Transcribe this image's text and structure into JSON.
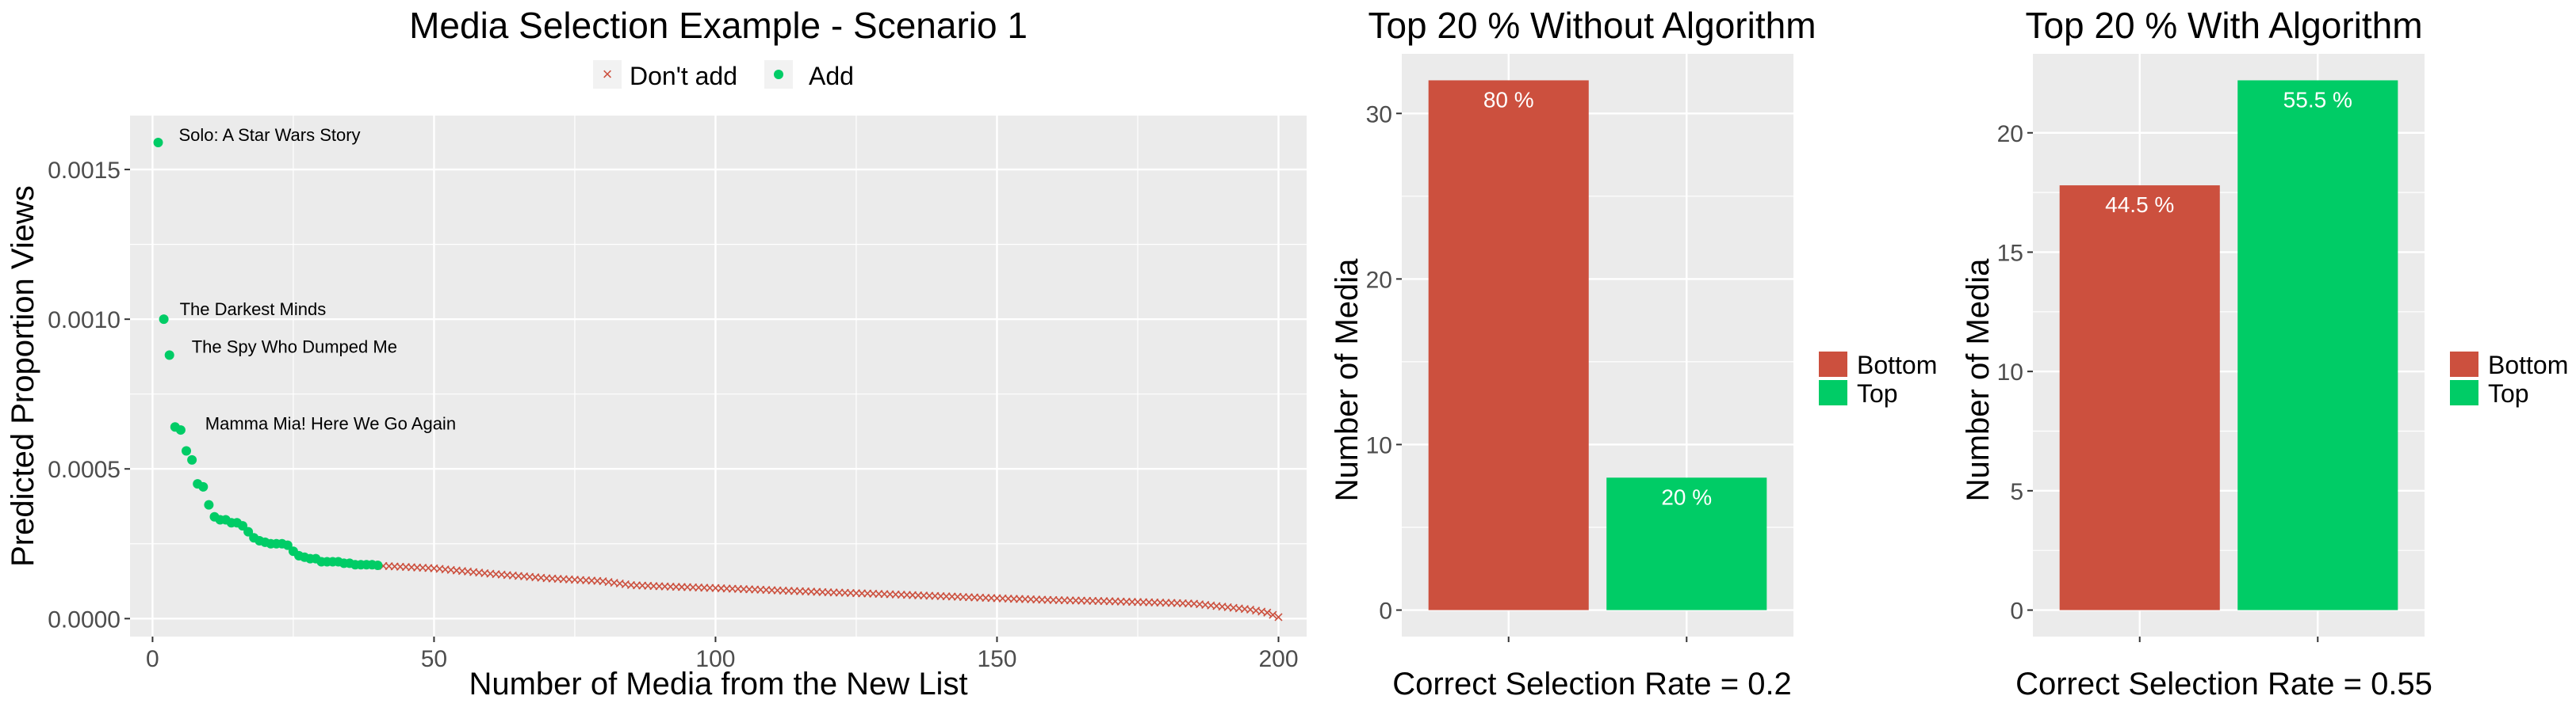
{
  "colors": {
    "dont_add": "#CC503E",
    "add": "#00CC66",
    "bottom": "#CC503E",
    "top": "#00CC66",
    "panel_bg": "#EBEBEB",
    "grid": "#FFFFFF",
    "axis_text": "#4D4D4D"
  },
  "chart_data": [
    {
      "type": "scatter",
      "title": "Media Selection Example - Scenario 1",
      "xlabel": "Number of Media from the New List",
      "ylabel": "Predicted Proportion Views",
      "xlim": [
        -4,
        205
      ],
      "ylim": [
        -6e-05,
        0.00168
      ],
      "x_ticks": [
        0,
        50,
        100,
        150,
        200
      ],
      "x_tick_labels": [
        "0",
        "50",
        "100",
        "150",
        "200"
      ],
      "y_ticks": [
        0,
        0.0005,
        0.001,
        0.0015
      ],
      "y_tick_labels": [
        "0.0000",
        "0.0005",
        "0.0010",
        "0.0015"
      ],
      "grid": true,
      "legend": {
        "position": "top",
        "entries": [
          "Don't add",
          "Add"
        ],
        "markers": [
          "cross",
          "dot"
        ]
      },
      "series": [
        {
          "name": "Add",
          "marker": "dot",
          "x": [
            1,
            2,
            3,
            4,
            5,
            6,
            7,
            8,
            9,
            10,
            11,
            12,
            13,
            14,
            15,
            16,
            17,
            18,
            19,
            20,
            21,
            22,
            23,
            24,
            25,
            26,
            27,
            28,
            29,
            30,
            31,
            32,
            33,
            34,
            35,
            36,
            37,
            38,
            39,
            40
          ],
          "y": [
            0.00159,
            0.001,
            0.00088,
            0.00064,
            0.00063,
            0.00056,
            0.00053,
            0.00045,
            0.00044,
            0.00038,
            0.00034,
            0.00033,
            0.00033,
            0.00032,
            0.00032,
            0.00031,
            0.00029,
            0.00027,
            0.00026,
            0.000255,
            0.00025,
            0.00025,
            0.00025,
            0.000245,
            0.000225,
            0.00021,
            0.000205,
            0.0002,
            0.0002,
            0.00019,
            0.00019,
            0.00019,
            0.00019,
            0.000185,
            0.000185,
            0.00018,
            0.00018,
            0.00018,
            0.00018,
            0.000178
          ]
        },
        {
          "name": "Don't add",
          "marker": "cross",
          "x_start": 41,
          "x_end": 200,
          "y_knots": [
            [
              41,
              0.000176
            ],
            [
              50,
              0.000168
            ],
            [
              60,
              0.00015
            ],
            [
              70,
              0.000135
            ],
            [
              80,
              0.000125
            ],
            [
              85,
              0.000112
            ],
            [
              90,
              0.000108
            ],
            [
              100,
              0.000102
            ],
            [
              110,
              9.5e-05
            ],
            [
              120,
              8.8e-05
            ],
            [
              130,
              8.2e-05
            ],
            [
              140,
              7.5e-05
            ],
            [
              150,
              6.8e-05
            ],
            [
              160,
              6.2e-05
            ],
            [
              170,
              5.8e-05
            ],
            [
              180,
              5.3e-05
            ],
            [
              185,
              5e-05
            ],
            [
              190,
              4e-05
            ],
            [
              195,
              3e-05
            ],
            [
              198,
              2e-05
            ],
            [
              200,
              5e-06
            ]
          ]
        }
      ],
      "annotations": [
        {
          "text": "Solo: A Star Wars Story",
          "x": 1,
          "y": 0.00159
        },
        {
          "text": "The Darkest Minds",
          "x": 2,
          "y": 0.001
        },
        {
          "text": "The Spy Who Dumped Me",
          "x": 3,
          "y": 0.00088
        },
        {
          "text": "Mamma Mia! Here We Go Again",
          "x": 4,
          "y": 0.00064
        }
      ]
    },
    {
      "type": "bar",
      "title": "Top 20 % Without Algorithm",
      "xlabel": "Correct Selection Rate =  0.2",
      "ylabel": "Number of Media",
      "categories": [
        "Bottom",
        "Top"
      ],
      "values": [
        32,
        8
      ],
      "data_labels": [
        "80 %",
        "20 %"
      ],
      "ylim": [
        -1.6,
        33.6
      ],
      "y_ticks": [
        0,
        10,
        20,
        30
      ],
      "y_tick_labels": [
        "0",
        "10",
        "20",
        "30"
      ],
      "grid": true,
      "legend": {
        "position": "right",
        "entries": [
          "Bottom",
          "Top"
        ]
      }
    },
    {
      "type": "bar",
      "title": "Top 20 % With Algorithm",
      "xlabel": "Correct Selection Rate =  0.55",
      "ylabel": "Number of Media",
      "categories": [
        "Bottom",
        "Top"
      ],
      "values": [
        17.8,
        22.2
      ],
      "data_labels": [
        "44.5 %",
        "55.5 %"
      ],
      "ylim": [
        -1.11,
        23.31
      ],
      "y_ticks": [
        0,
        5,
        10,
        15,
        20
      ],
      "y_tick_labels": [
        "0",
        "5",
        "10",
        "15",
        "20"
      ],
      "grid": true,
      "legend": {
        "position": "right",
        "entries": [
          "Bottom",
          "Top"
        ]
      }
    }
  ]
}
